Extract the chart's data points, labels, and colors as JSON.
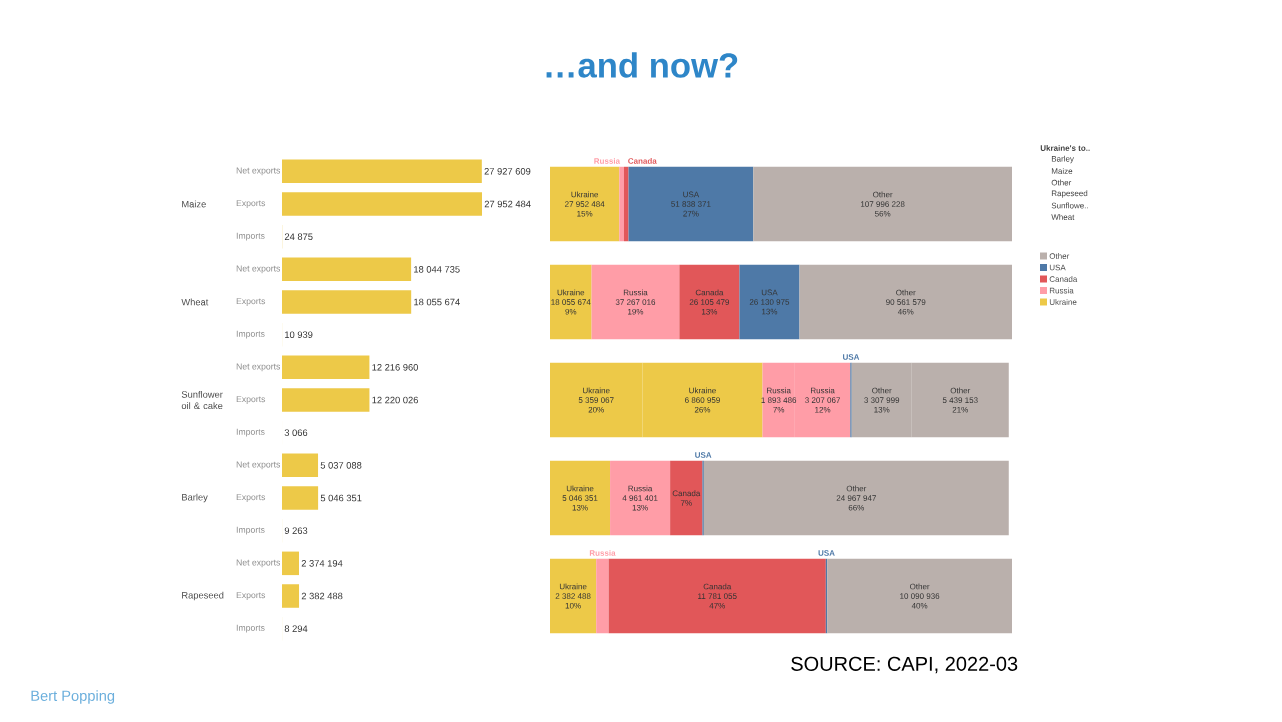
{
  "chart_data": [
    {
      "type": "bar",
      "orientation": "horizontal",
      "color": "#edc948",
      "categories": [
        "Net exports",
        "Exports",
        "Imports",
        "Net exports",
        "Exports",
        "Imports",
        "Net exports",
        "Exports",
        "Imports",
        "Net exports",
        "Exports",
        "Imports",
        "Net exports",
        "Exports",
        "Imports"
      ],
      "values": [
        27927609,
        27952484,
        24875,
        18044735,
        18055674,
        10939,
        12216960,
        12220026,
        3066,
        5037088,
        5046351,
        9263,
        2374194,
        2382488,
        8294
      ],
      "value_labels": [
        "27 927 609",
        "27 952 484",
        "24 875",
        "18 044 735",
        "18 055 674",
        "10 939",
        "12 216 960",
        "12 220 026",
        "3 066",
        "5 037 088",
        "5 046 351",
        "9 263",
        "2 374 194",
        "2 382 488",
        "8 294"
      ],
      "annotations": [
        "SOURCE: CAPI, 2022-03",
        "Bert Popping"
      ]
    },
    {
      "type": "bar",
      "title": "…and now?",
      "orientation": "horizontal",
      "stacked": true,
      "xlim": [
        0,
        100
      ],
      "legend": "right",
      "categories": [
        "Maize",
        "Wheat",
        "Sunflower oil & cake",
        "Barley",
        "Rapeseed"
      ],
      "series": [
        {
          "name": "Ukraine",
          "color": "#edc948",
          "values": [
            15,
            9,
            20,
            13,
            10
          ],
          "value_labels": [
            "27 952 484 15%",
            "18 055 674 9%",
            "5 359 067 20%",
            "5 046 351 13%",
            "2 382 488 10%"
          ]
        },
        {
          "name": "Ukraine",
          "color": "#edc948",
          "values": [
            null,
            null,
            26,
            null,
            null
          ],
          "value_labels": [
            null,
            null,
            "6 860 959 26%",
            null,
            null
          ]
        },
        {
          "name": "Russia",
          "color": "#ff9da7",
          "values": [
            1,
            19,
            7,
            13,
            2.7
          ],
          "value_labels": [
            null,
            "37 267 016 19%",
            "1 893 486 7%",
            "4 961 401 13%",
            null
          ]
        },
        {
          "name": "Russia",
          "color": "#ff9da7",
          "values": [
            null,
            null,
            12,
            null,
            null
          ],
          "value_labels": [
            null,
            null,
            "3 207 067 12%",
            null,
            null
          ]
        },
        {
          "name": "Canada",
          "color": "#e15759",
          "values": [
            1,
            13,
            null,
            7,
            47
          ],
          "value_labels": [
            null,
            "26 105 479 13%",
            null,
            "7%",
            "11 781 055 47%"
          ]
        },
        {
          "name": "USA",
          "color": "#4e79a7",
          "values": [
            27,
            13,
            0.3,
            0.3,
            0.3
          ],
          "value_labels": [
            "51 838 371 27%",
            "26 130 975 13%",
            null,
            null,
            null
          ]
        },
        {
          "name": "Other",
          "color": "#bab0ac",
          "values": [
            56,
            46,
            13,
            66,
            40
          ],
          "value_labels": [
            "107 996 228 56%",
            "90 561 579 46%",
            "3 307 999 13%",
            "24 967 947 66%",
            "10 090 936 40%"
          ]
        },
        {
          "name": "Other",
          "color": "#bab0ac",
          "values": [
            null,
            null,
            21,
            null,
            null
          ],
          "value_labels": [
            null,
            null,
            "5 439 153 21%",
            null,
            null
          ]
        }
      ],
      "annotations": [
        "Ukraine's to..",
        "Barley",
        "Maize",
        "Other",
        "Rapeseed",
        "Sunflowe..",
        "Wheat"
      ]
    }
  ]
}
